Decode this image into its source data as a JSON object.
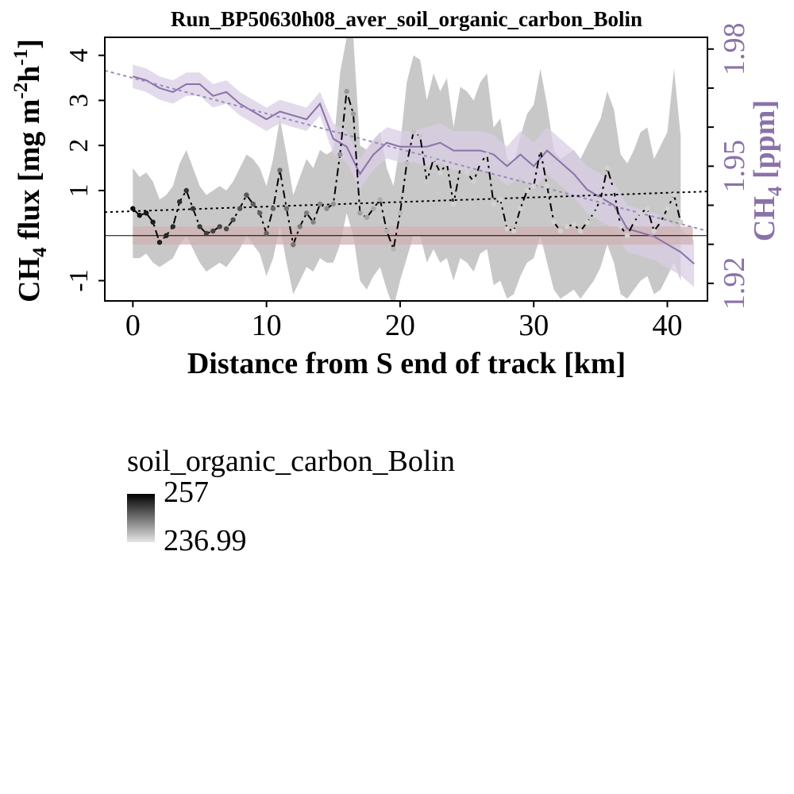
{
  "chart_data": {
    "type": "line",
    "title": "Run_BP50630h08_aver_soil_organic_carbon_Bolin",
    "xlabel": "Distance from S end of track [km]",
    "ylabel_left": {
      "base": "CH",
      "sub": "4",
      "mid": " flux [mg m",
      "sup1": "-2",
      "mid2": "h",
      "sup2": "-1",
      "end": "]"
    },
    "ylabel_right": {
      "base": "CH",
      "sub": "4",
      "end": " [ppm]"
    },
    "x_ticks": [
      "0",
      "10",
      "20",
      "30",
      "40"
    ],
    "y_left_ticks": [
      "-1",
      "1",
      "2",
      "3",
      "4"
    ],
    "y_right_ticks": [
      "1.92",
      "1.95",
      "1.98"
    ],
    "xlim": [
      -2.1,
      43.0
    ],
    "ylim_left": [
      -1.45,
      4.4
    ],
    "ylim_right": [
      1.9155,
      1.983
    ],
    "colors": {
      "flux_line": "#000000",
      "flux_band": "#c8c8c8",
      "conc_line": "#8a72a8",
      "conc_band": "#d9cde6",
      "zero_band": "#cfb2b2",
      "conc_trend": "#9a8cb8",
      "flux_trend": "#000000"
    },
    "flux_series": {
      "name": "",
      "x": [
        0,
        0.5,
        1,
        1.5,
        2,
        2.5,
        3,
        3.5,
        4,
        4.5,
        5,
        5.5,
        6,
        6.5,
        7,
        7.5,
        8,
        8.5,
        9,
        9.5,
        10,
        10.5,
        11,
        11.5,
        12,
        12.5,
        13,
        13.5,
        14,
        14.5,
        15,
        15.5,
        16,
        16.5,
        17,
        17.5,
        18,
        18.5,
        19,
        19.5,
        20,
        20.5,
        21,
        21.5,
        22,
        22.5,
        23,
        23.5,
        24,
        24.5,
        25,
        25.5,
        26,
        26.5,
        27,
        27.5,
        28,
        28.5,
        29,
        29.5,
        30,
        30.5,
        31,
        31.5,
        32,
        32.5,
        33,
        33.5,
        34,
        34.5,
        35,
        35.5,
        36,
        36.5,
        37,
        37.5,
        38,
        38.5,
        39,
        39.5,
        40,
        40.5,
        41
      ],
      "values": [
        0.6,
        0.45,
        0.5,
        0.3,
        -0.15,
        0.0,
        0.2,
        0.75,
        1.0,
        0.6,
        0.2,
        0.05,
        0.1,
        0.2,
        0.15,
        0.35,
        0.6,
        0.9,
        0.7,
        0.5,
        0.05,
        0.6,
        1.45,
        0.6,
        -0.2,
        0.2,
        0.5,
        0.3,
        0.7,
        0.6,
        0.7,
        1.8,
        3.2,
        2.7,
        0.5,
        0.4,
        0.6,
        0.8,
        0.1,
        -0.3,
        0.5,
        1.6,
        2.3,
        2.2,
        1.2,
        1.7,
        1.4,
        1.6,
        0.7,
        1.5,
        1.4,
        1.2,
        1.6,
        1.8,
        0.7,
        0.8,
        0.15,
        0.1,
        0.6,
        1.0,
        1.1,
        1.9,
        1.1,
        0.3,
        0.1,
        0.2,
        0.25,
        0.1,
        0.3,
        0.5,
        0.8,
        1.5,
        1.0,
        0.2,
        0.0,
        0.3,
        0.5,
        0.6,
        0.1,
        0.3,
        0.6,
        0.9,
        0.3
      ],
      "band_lower": [
        -0.5,
        -0.5,
        -0.4,
        -0.6,
        -0.7,
        -0.6,
        -0.5,
        -0.2,
        0.0,
        -0.3,
        -0.6,
        -0.8,
        -0.7,
        -0.6,
        -0.7,
        -0.5,
        -0.3,
        0.0,
        -0.2,
        -0.4,
        -0.9,
        -0.5,
        0.2,
        -0.6,
        -1.3,
        -1.0,
        -0.7,
        -0.8,
        -0.5,
        -0.6,
        -0.6,
        -0.2,
        0.5,
        0.0,
        -1.0,
        -1.2,
        -0.9,
        -0.7,
        -1.2,
        -1.6,
        -1.0,
        -0.5,
        0.0,
        0.0,
        -0.6,
        -0.3,
        -0.6,
        -0.5,
        -1.0,
        -0.5,
        -0.6,
        -0.8,
        -0.4,
        -0.3,
        -1.1,
        -1.0,
        -1.4,
        -1.3,
        -0.9,
        -0.6,
        -0.5,
        0.0,
        -0.6,
        -1.2,
        -1.4,
        -1.3,
        -1.2,
        -1.4,
        -1.2,
        -1.0,
        -0.7,
        -0.2,
        -0.6,
        -1.3,
        -1.4,
        -1.2,
        -1.0,
        -0.9,
        -1.3,
        -1.2,
        -0.9,
        -0.6,
        -1.0
      ],
      "band_upper": [
        1.5,
        1.3,
        1.4,
        1.2,
        0.8,
        0.9,
        1.1,
        1.6,
        1.9,
        1.5,
        1.1,
        0.9,
        1.0,
        1.1,
        1.0,
        1.2,
        1.5,
        1.8,
        1.7,
        1.5,
        1.1,
        1.7,
        2.6,
        1.8,
        0.9,
        1.3,
        1.7,
        1.5,
        1.9,
        1.8,
        1.9,
        3.6,
        4.4,
        4.4,
        2.0,
        1.9,
        2.1,
        2.3,
        1.5,
        1.1,
        2.0,
        3.4,
        4.0,
        3.9,
        3.0,
        3.6,
        3.2,
        3.5,
        2.4,
        3.3,
        3.2,
        3.0,
        3.4,
        3.6,
        2.4,
        2.6,
        1.7,
        1.6,
        2.2,
        2.7,
        2.9,
        3.7,
        2.9,
        1.9,
        1.7,
        1.8,
        1.9,
        1.7,
        2.0,
        2.3,
        2.6,
        3.2,
        2.8,
        1.8,
        1.6,
        1.9,
        2.3,
        2.4,
        1.7,
        2.0,
        2.3,
        3.7,
        2.2
      ]
    },
    "conc_series": {
      "name": "",
      "x": [
        0,
        1,
        2,
        3,
        4,
        5,
        6,
        7,
        8,
        9,
        10,
        11,
        12,
        13,
        14,
        15,
        16,
        17,
        18,
        19,
        20,
        21,
        22,
        23,
        24,
        25,
        26,
        27,
        28,
        29,
        30,
        31,
        32,
        33,
        34,
        35,
        36,
        37,
        38,
        39,
        40,
        41,
        42
      ],
      "values": [
        1.973,
        1.972,
        1.97,
        1.969,
        1.971,
        1.971,
        1.968,
        1.969,
        1.966,
        1.964,
        1.962,
        1.964,
        1.963,
        1.962,
        1.966,
        1.957,
        1.955,
        1.948,
        1.953,
        1.956,
        1.955,
        1.955,
        1.955,
        1.956,
        1.954,
        1.954,
        1.954,
        1.953,
        1.95,
        1.953,
        1.95,
        1.954,
        1.951,
        1.948,
        1.944,
        1.942,
        1.94,
        1.934,
        1.933,
        1.932,
        1.93,
        1.928,
        1.925
      ],
      "band_halfwidth": [
        0.003,
        0.003,
        0.003,
        0.003,
        0.003,
        0.003,
        0.003,
        0.003,
        0.003,
        0.003,
        0.003,
        0.003,
        0.003,
        0.003,
        0.003,
        0.004,
        0.004,
        0.004,
        0.004,
        0.004,
        0.004,
        0.004,
        0.005,
        0.005,
        0.005,
        0.005,
        0.005,
        0.005,
        0.005,
        0.006,
        0.006,
        0.006,
        0.006,
        0.006,
        0.006,
        0.006,
        0.006,
        0.006,
        0.006,
        0.006,
        0.006,
        0.006,
        0.006
      ]
    },
    "flux_trend": {
      "x": [
        -2.1,
        43.0
      ],
      "y": [
        0.52,
        0.98
      ]
    },
    "conc_trend": {
      "x": [
        -2.1,
        43.0
      ],
      "y": [
        1.9745,
        1.9334
      ]
    },
    "zero_band": [
      -0.2,
      0.2
    ],
    "legend": {
      "title": "soil_organic_carbon_Bolin",
      "max_label": "257",
      "min_label": "236.99",
      "gradient": [
        "#000000",
        "#e6e6e6"
      ]
    }
  }
}
